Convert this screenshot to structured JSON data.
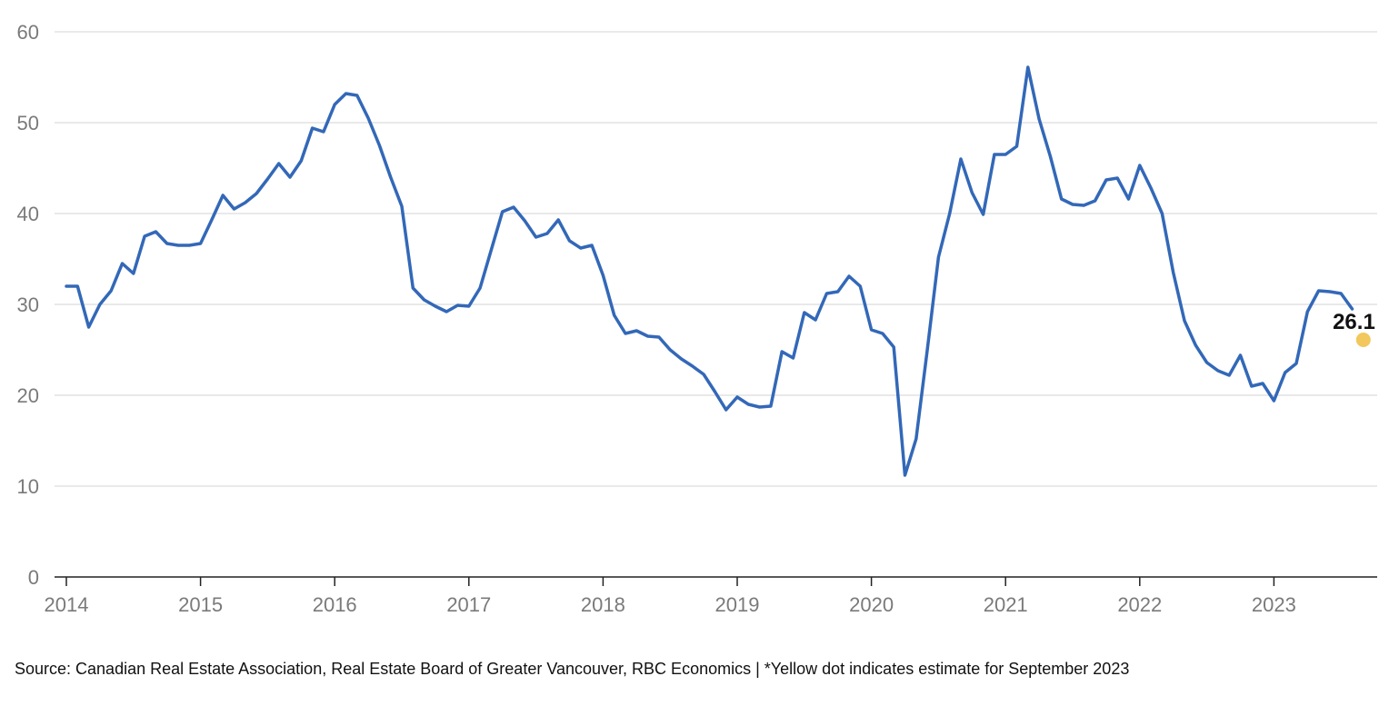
{
  "chart_data": {
    "type": "line",
    "title": "",
    "xlabel": "",
    "ylabel": "",
    "ylim": [
      0,
      60
    ],
    "xlim": [
      "2014-01",
      "2023-10"
    ],
    "grid": "horizontal",
    "y_ticks": [
      0,
      10,
      20,
      30,
      40,
      50,
      60
    ],
    "x_ticks": [
      "2014",
      "2015",
      "2016",
      "2017",
      "2018",
      "2019",
      "2020",
      "2021",
      "2022",
      "2023"
    ],
    "series": [
      {
        "color": "#3368b8",
        "points": [
          [
            "2014-01",
            32.0
          ],
          [
            "2014-02",
            32.0
          ],
          [
            "2014-03",
            27.5
          ],
          [
            "2014-04",
            30.0
          ],
          [
            "2014-05",
            31.5
          ],
          [
            "2014-06",
            34.5
          ],
          [
            "2014-07",
            33.4
          ],
          [
            "2014-08",
            37.5
          ],
          [
            "2014-09",
            38.0
          ],
          [
            "2014-10",
            36.7
          ],
          [
            "2014-11",
            36.5
          ],
          [
            "2014-12",
            36.5
          ],
          [
            "2015-01",
            36.7
          ],
          [
            "2015-02",
            39.3
          ],
          [
            "2015-03",
            42.0
          ],
          [
            "2015-04",
            40.5
          ],
          [
            "2015-05",
            41.2
          ],
          [
            "2015-06",
            42.2
          ],
          [
            "2015-07",
            43.8
          ],
          [
            "2015-08",
            45.5
          ],
          [
            "2015-09",
            44.0
          ],
          [
            "2015-10",
            45.8
          ],
          [
            "2015-11",
            49.4
          ],
          [
            "2015-12",
            49.0
          ],
          [
            "2016-01",
            52.0
          ],
          [
            "2016-02",
            53.2
          ],
          [
            "2016-03",
            53.0
          ],
          [
            "2016-04",
            50.5
          ],
          [
            "2016-05",
            47.5
          ],
          [
            "2016-06",
            44.0
          ],
          [
            "2016-07",
            40.8
          ],
          [
            "2016-08",
            31.8
          ],
          [
            "2016-09",
            30.5
          ],
          [
            "2016-10",
            29.8
          ],
          [
            "2016-11",
            29.2
          ],
          [
            "2016-12",
            29.9
          ],
          [
            "2017-01",
            29.8
          ],
          [
            "2017-02",
            31.8
          ],
          [
            "2017-03",
            36.0
          ],
          [
            "2017-04",
            40.2
          ],
          [
            "2017-05",
            40.7
          ],
          [
            "2017-06",
            39.2
          ],
          [
            "2017-07",
            37.4
          ],
          [
            "2017-08",
            37.8
          ],
          [
            "2017-09",
            39.3
          ],
          [
            "2017-10",
            37.0
          ],
          [
            "2017-11",
            36.2
          ],
          [
            "2017-12",
            36.5
          ],
          [
            "2018-01",
            33.2
          ],
          [
            "2018-02",
            28.8
          ],
          [
            "2018-03",
            26.8
          ],
          [
            "2018-04",
            27.1
          ],
          [
            "2018-05",
            26.5
          ],
          [
            "2018-06",
            26.4
          ],
          [
            "2018-07",
            25.0
          ],
          [
            "2018-08",
            24.0
          ],
          [
            "2018-09",
            23.2
          ],
          [
            "2018-10",
            22.3
          ],
          [
            "2018-11",
            20.4
          ],
          [
            "2018-12",
            18.4
          ],
          [
            "2019-01",
            19.8
          ],
          [
            "2019-02",
            19.0
          ],
          [
            "2019-03",
            18.7
          ],
          [
            "2019-04",
            18.8
          ],
          [
            "2019-05",
            24.8
          ],
          [
            "2019-06",
            24.1
          ],
          [
            "2019-07",
            29.1
          ],
          [
            "2019-08",
            28.3
          ],
          [
            "2019-09",
            31.2
          ],
          [
            "2019-10",
            31.4
          ],
          [
            "2019-11",
            33.1
          ],
          [
            "2019-12",
            32.0
          ],
          [
            "2020-01",
            27.2
          ],
          [
            "2020-02",
            26.8
          ],
          [
            "2020-03",
            25.3
          ],
          [
            "2020-04",
            11.2
          ],
          [
            "2020-05",
            15.2
          ],
          [
            "2020-06",
            25.0
          ],
          [
            "2020-07",
            35.2
          ],
          [
            "2020-08",
            40.0
          ],
          [
            "2020-09",
            46.0
          ],
          [
            "2020-10",
            42.3
          ],
          [
            "2020-11",
            39.9
          ],
          [
            "2020-12",
            46.5
          ],
          [
            "2021-01",
            46.5
          ],
          [
            "2021-02",
            47.4
          ],
          [
            "2021-03",
            56.1
          ],
          [
            "2021-04",
            50.4
          ],
          [
            "2021-05",
            46.3
          ],
          [
            "2021-06",
            41.6
          ],
          [
            "2021-07",
            41.0
          ],
          [
            "2021-08",
            40.9
          ],
          [
            "2021-09",
            41.4
          ],
          [
            "2021-10",
            43.7
          ],
          [
            "2021-11",
            43.9
          ],
          [
            "2021-12",
            41.6
          ],
          [
            "2022-01",
            45.3
          ],
          [
            "2022-02",
            42.8
          ],
          [
            "2022-03",
            40.0
          ],
          [
            "2022-04",
            33.5
          ],
          [
            "2022-05",
            28.2
          ],
          [
            "2022-06",
            25.5
          ],
          [
            "2022-07",
            23.6
          ],
          [
            "2022-08",
            22.7
          ],
          [
            "2022-09",
            22.2
          ],
          [
            "2022-10",
            24.4
          ],
          [
            "2022-11",
            21.0
          ],
          [
            "2022-12",
            21.3
          ],
          [
            "2023-01",
            19.4
          ],
          [
            "2023-02",
            22.5
          ],
          [
            "2023-03",
            23.5
          ],
          [
            "2023-04",
            29.2
          ],
          [
            "2023-05",
            31.5
          ],
          [
            "2023-06",
            31.4
          ],
          [
            "2023-07",
            31.2
          ],
          [
            "2023-08",
            29.5
          ]
        ]
      }
    ],
    "estimate": {
      "x": "2023-09",
      "value": 26.1,
      "label": "26.1",
      "color": "#f2c75c"
    }
  },
  "source_note": "Source: Canadian Real Estate Association, Real Estate Board of Greater Vancouver, RBC Economics | *Yellow dot indicates estimate for September 2023"
}
